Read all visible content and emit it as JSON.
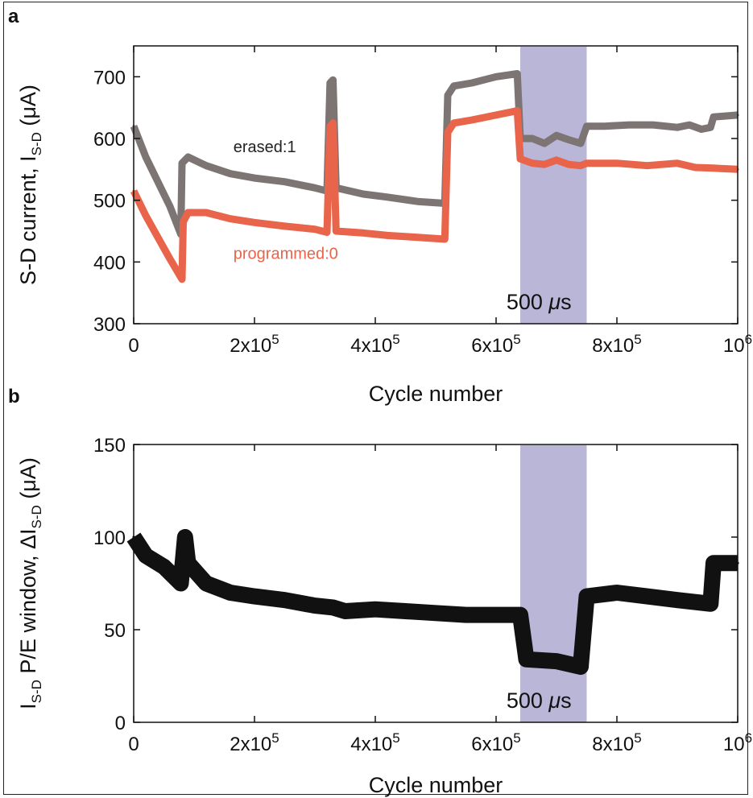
{
  "chart_data": [
    {
      "panel": "a",
      "type": "scatter",
      "xlabel": "Cycle number",
      "ylabel": "S-D current, I",
      "ylabel_sub": "S-D",
      "ylabel_unit": " (μA)",
      "xlim": [
        0,
        1000000
      ],
      "ylim": [
        300,
        750
      ],
      "xticks": [
        {
          "v": 0,
          "base": "0",
          "exp": ""
        },
        {
          "v": 200000,
          "base": "2x10",
          "exp": "5"
        },
        {
          "v": 400000,
          "base": "4x10",
          "exp": "5"
        },
        {
          "v": 600000,
          "base": "6x10",
          "exp": "5"
        },
        {
          "v": 800000,
          "base": "8x10",
          "exp": "5"
        },
        {
          "v": 1000000,
          "base": "10",
          "exp": "6"
        }
      ],
      "yticks": [
        300,
        400,
        500,
        600,
        700
      ],
      "shaded_region": {
        "x": [
          640000,
          750000
        ],
        "label_value": "500 ",
        "label_unit": "μ",
        "label_suffix": "s",
        "color": "#b9b6d8"
      },
      "series": [
        {
          "name": "erased:1",
          "color": "#7d7574",
          "points": [
            [
              0,
              620
            ],
            [
              20000,
              570
            ],
            [
              40000,
              530
            ],
            [
              60000,
              490
            ],
            [
              78000,
              445
            ],
            [
              80000,
              560
            ],
            [
              90000,
              570
            ],
            [
              120000,
              556
            ],
            [
              160000,
              543
            ],
            [
              200000,
              536
            ],
            [
              250000,
              530
            ],
            [
              300000,
              520
            ],
            [
              320000,
              515
            ],
            [
              325000,
              690
            ],
            [
              330000,
              695
            ],
            [
              335000,
              520
            ],
            [
              380000,
              510
            ],
            [
              420000,
              505
            ],
            [
              470000,
              498
            ],
            [
              515000,
              495
            ],
            [
              520000,
              670
            ],
            [
              530000,
              685
            ],
            [
              560000,
              690
            ],
            [
              600000,
              700
            ],
            [
              635000,
              705
            ],
            [
              640000,
              600
            ],
            [
              660000,
              600
            ],
            [
              680000,
              592
            ],
            [
              700000,
              605
            ],
            [
              720000,
              598
            ],
            [
              740000,
              592
            ],
            [
              750000,
              620
            ],
            [
              780000,
              620
            ],
            [
              820000,
              622
            ],
            [
              860000,
              622
            ],
            [
              900000,
              618
            ],
            [
              920000,
              622
            ],
            [
              940000,
              615
            ],
            [
              955000,
              618
            ],
            [
              960000,
              635
            ],
            [
              1000000,
              638
            ]
          ]
        },
        {
          "name": "programmed:0",
          "color": "#e8644a",
          "points": [
            [
              0,
              515
            ],
            [
              20000,
              475
            ],
            [
              40000,
              440
            ],
            [
              60000,
              405
            ],
            [
              80000,
              372
            ],
            [
              82000,
              465
            ],
            [
              90000,
              480
            ],
            [
              120000,
              480
            ],
            [
              160000,
              470
            ],
            [
              200000,
              464
            ],
            [
              250000,
              458
            ],
            [
              300000,
              453
            ],
            [
              320000,
              448
            ],
            [
              325000,
              620
            ],
            [
              330000,
              625
            ],
            [
              335000,
              450
            ],
            [
              380000,
              447
            ],
            [
              420000,
              443
            ],
            [
              470000,
              440
            ],
            [
              515000,
              437
            ],
            [
              520000,
              610
            ],
            [
              530000,
              625
            ],
            [
              560000,
              630
            ],
            [
              600000,
              638
            ],
            [
              635000,
              645
            ],
            [
              640000,
              567
            ],
            [
              660000,
              560
            ],
            [
              680000,
              558
            ],
            [
              700000,
              565
            ],
            [
              720000,
              558
            ],
            [
              740000,
              556
            ],
            [
              750000,
              560
            ],
            [
              800000,
              560
            ],
            [
              850000,
              556
            ],
            [
              900000,
              560
            ],
            [
              930000,
              553
            ],
            [
              960000,
              552
            ],
            [
              1000000,
              550
            ]
          ]
        }
      ],
      "annotations": [
        {
          "text": "erased:1",
          "x": 165000,
          "y": 578,
          "color": "#222222"
        },
        {
          "text": "programmed:0",
          "x": 165000,
          "y": 405,
          "color": "#e8644a"
        }
      ]
    },
    {
      "panel": "b",
      "type": "scatter",
      "xlabel": "Cycle number",
      "ylabel_pre": "I",
      "ylabel_pre_sub": "S-D",
      "ylabel_mid": " P/E window, ΔI",
      "ylabel_sub": "S-D",
      "ylabel_unit": " (μA)",
      "xlim": [
        0,
        1000000
      ],
      "ylim": [
        0,
        150
      ],
      "xticks": [
        {
          "v": 0,
          "base": "0",
          "exp": ""
        },
        {
          "v": 200000,
          "base": "2x10",
          "exp": "5"
        },
        {
          "v": 400000,
          "base": "4x10",
          "exp": "5"
        },
        {
          "v": 600000,
          "base": "6x10",
          "exp": "5"
        },
        {
          "v": 800000,
          "base": "8x10",
          "exp": "5"
        },
        {
          "v": 1000000,
          "base": "10",
          "exp": "6"
        }
      ],
      "yticks": [
        0,
        50,
        100,
        150
      ],
      "shaded_region": {
        "x": [
          640000,
          750000
        ],
        "label_value": "500 ",
        "label_unit": "μ",
        "label_suffix": "s",
        "color": "#b9b6d8"
      },
      "series": [
        {
          "color": "#111111",
          "points": [
            [
              0,
              100
            ],
            [
              20000,
              90
            ],
            [
              50000,
              84
            ],
            [
              78000,
              75
            ],
            [
              85000,
              100
            ],
            [
              90000,
              86
            ],
            [
              120000,
              75
            ],
            [
              160000,
              70
            ],
            [
              200000,
              68
            ],
            [
              250000,
              66
            ],
            [
              300000,
              63
            ],
            [
              330000,
              62
            ],
            [
              350000,
              60
            ],
            [
              400000,
              61
            ],
            [
              450000,
              60
            ],
            [
              500000,
              59
            ],
            [
              550000,
              58
            ],
            [
              600000,
              58
            ],
            [
              640000,
              58
            ],
            [
              650000,
              34
            ],
            [
              700000,
              33
            ],
            [
              740000,
              30
            ],
            [
              750000,
              68
            ],
            [
              800000,
              70
            ],
            [
              850000,
              68
            ],
            [
              900000,
              66
            ],
            [
              955000,
              64
            ],
            [
              960000,
              86
            ],
            [
              1000000,
              86
            ]
          ]
        }
      ]
    }
  ],
  "panels": {
    "a": "a",
    "b": "b"
  }
}
